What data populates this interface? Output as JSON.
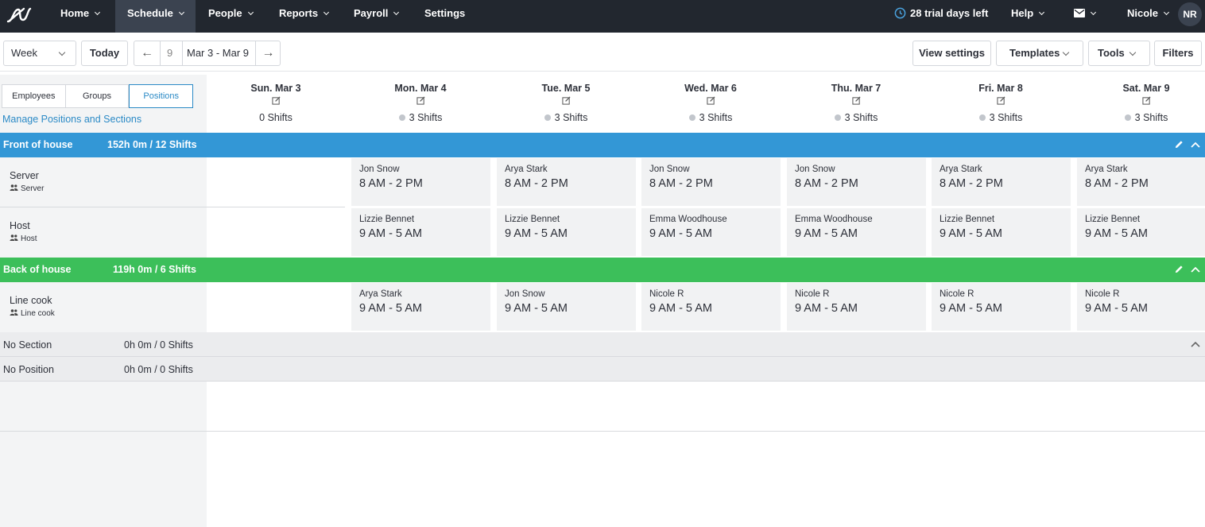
{
  "nav": {
    "items": [
      {
        "label": "Home"
      },
      {
        "label": "Schedule"
      },
      {
        "label": "People"
      },
      {
        "label": "Reports"
      },
      {
        "label": "Payroll"
      },
      {
        "label": "Settings"
      }
    ],
    "trial": "28 trial days left",
    "help": "Help",
    "user": "Nicole",
    "avatar": "NR"
  },
  "toolbar": {
    "view_select": "Week",
    "today": "Today",
    "week_number": "9",
    "date_range": "Mar 3 - Mar 9",
    "view_settings": "View settings",
    "templates": "Templates",
    "tools": "Tools",
    "filters": "Filters"
  },
  "tabs": [
    {
      "label": "Employees",
      "active": false
    },
    {
      "label": "Groups",
      "active": false
    },
    {
      "label": "Positions",
      "active": true
    }
  ],
  "manage_link": "Manage Positions and Sections",
  "days": [
    {
      "label": "Sun. Mar 3",
      "count": "0 Shifts",
      "dot": false
    },
    {
      "label": "Mon. Mar 4",
      "count": "3 Shifts",
      "dot": true
    },
    {
      "label": "Tue. Mar 5",
      "count": "3 Shifts",
      "dot": true
    },
    {
      "label": "Wed. Mar 6",
      "count": "3 Shifts",
      "dot": true
    },
    {
      "label": "Thu. Mar 7",
      "count": "3 Shifts",
      "dot": true
    },
    {
      "label": "Fri. Mar 8",
      "count": "3 Shifts",
      "dot": true
    },
    {
      "label": "Sat. Mar 9",
      "count": "3 Shifts",
      "dot": true
    }
  ],
  "sections": [
    {
      "name": "Front of house",
      "stats": "152h 0m / 12 Shifts",
      "color": "#3397d6"
    },
    {
      "name": "Back of house",
      "stats": "119h 0m / 6 Shifts",
      "color": "#3cbf5a"
    }
  ],
  "positions": [
    {
      "name": "Server",
      "group": "Server",
      "shifts": [
        null,
        {
          "employee": "Jon Snow",
          "time": "8 AM  - 2 PM"
        },
        {
          "employee": "Arya Stark",
          "time": "8 AM  - 2 PM"
        },
        {
          "employee": "Jon Snow",
          "time": "8 AM  - 2 PM"
        },
        {
          "employee": "Jon Snow",
          "time": "8 AM  - 2 PM"
        },
        {
          "employee": "Arya Stark",
          "time": "8 AM  - 2 PM"
        },
        {
          "employee": "Arya Stark",
          "time": "8 AM  - 2 PM"
        }
      ]
    },
    {
      "name": "Host",
      "group": "Host",
      "shifts": [
        null,
        {
          "employee": "Lizzie Bennet",
          "time": "9 AM  - 5 AM"
        },
        {
          "employee": "Lizzie Bennet",
          "time": "9 AM  - 5 AM"
        },
        {
          "employee": "Emma Woodhouse",
          "time": "9 AM  - 5 AM"
        },
        {
          "employee": "Emma Woodhouse",
          "time": "9 AM  - 5 AM"
        },
        {
          "employee": "Lizzie Bennet",
          "time": "9 AM  - 5 AM"
        },
        {
          "employee": "Lizzie Bennet",
          "time": "9 AM  - 5 AM"
        }
      ]
    },
    {
      "name": "Line cook",
      "group": "Line cook",
      "shifts": [
        null,
        {
          "employee": "Arya Stark",
          "time": "9 AM  - 5 AM"
        },
        {
          "employee": "Jon Snow",
          "time": "9 AM  - 5 AM"
        },
        {
          "employee": "Nicole R",
          "time": "9 AM  - 5 AM"
        },
        {
          "employee": "Nicole R",
          "time": "9 AM  - 5 AM"
        },
        {
          "employee": "Nicole R",
          "time": "9 AM  - 5 AM"
        },
        {
          "employee": "Nicole R",
          "time": "9 AM  - 5 AM"
        }
      ]
    }
  ],
  "no_section": {
    "name": "No Section",
    "stats": "0h 0m / 0 Shifts"
  },
  "no_position": {
    "name": "No Position",
    "stats": "0h 0m / 0 Shifts"
  }
}
